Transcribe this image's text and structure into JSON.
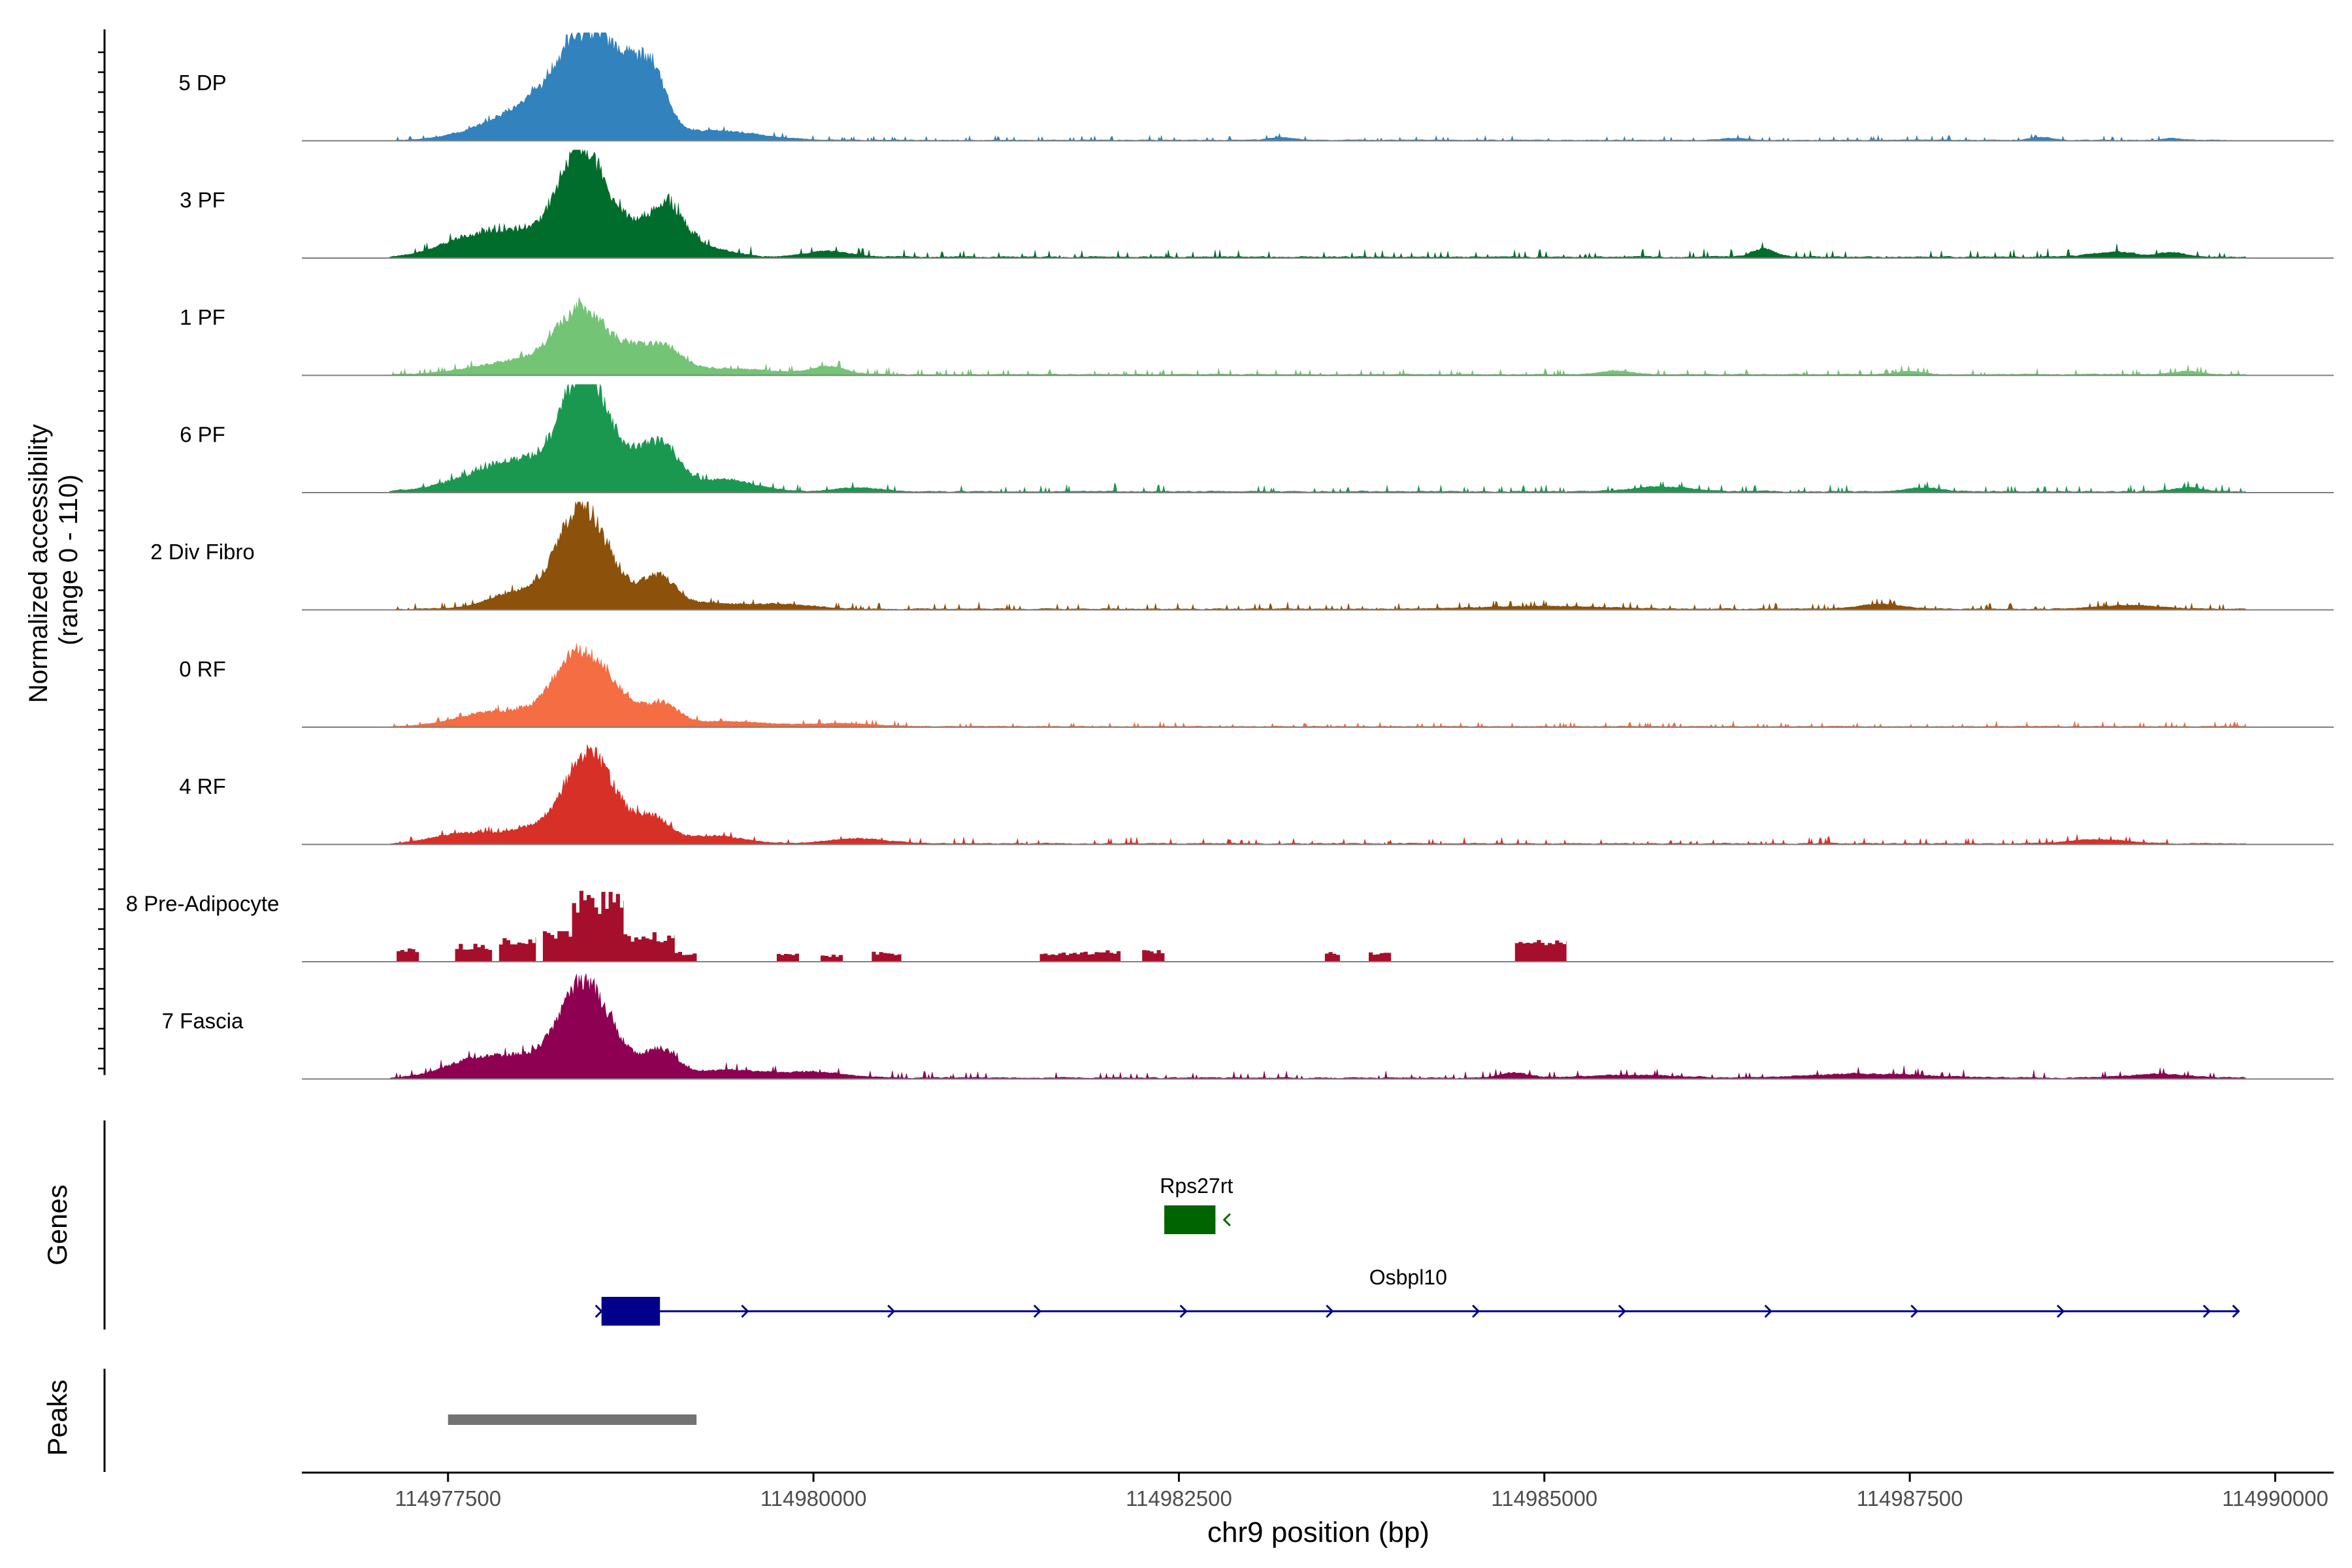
{
  "chart_data": {
    "type": "area",
    "title": "",
    "ylabel_line1": "Normalized accessibility",
    "ylabel_line2": "(range 0 - 110)",
    "ylim": [
      0,
      110
    ],
    "xlabel": "chr9 position (bp)",
    "xlim": [
      114976500,
      114990400
    ],
    "x_ticks": [
      114977500,
      114980000,
      114982500,
      114985000,
      114987500,
      114990000
    ],
    "x_tick_labels": [
      "114977500",
      "114980000",
      "114982500",
      "114985000",
      "114987500",
      "114990000"
    ],
    "gene_panel_label": "Genes",
    "peak_panel_label": "Peaks",
    "series": [
      {
        "name": "5 DP",
        "color": "#3182BD",
        "peaks": [
          [
            114978400,
            95,
            170
          ],
          [
            114978700,
            60,
            150
          ],
          [
            114978900,
            50,
            100
          ],
          [
            114978050,
            30,
            200
          ],
          [
            114977700,
            8,
            200
          ],
          [
            114979300,
            10,
            300
          ],
          [
            114983200,
            3,
            80
          ],
          [
            114986300,
            2,
            80
          ],
          [
            114988400,
            3,
            70
          ],
          [
            114989300,
            2,
            60
          ]
        ],
        "noise": 1.5,
        "start": 114977100,
        "end": 114989700,
        "seed": 11
      },
      {
        "name": "3 PF",
        "color": "#006D2C",
        "peaks": [
          [
            114978420,
            105,
            150
          ],
          [
            114978750,
            25,
            120
          ],
          [
            114979000,
            50,
            120
          ],
          [
            114978000,
            25,
            300
          ],
          [
            114977600,
            10,
            200
          ],
          [
            114979300,
            8,
            150
          ],
          [
            114980100,
            6,
            150
          ],
          [
            114986500,
            8,
            80
          ],
          [
            114988900,
            5,
            150
          ],
          [
            114989300,
            4,
            100
          ]
        ],
        "noise": 2.5,
        "start": 114977100,
        "end": 114989800,
        "seed": 23
      },
      {
        "name": "1 PF",
        "color": "#74C476",
        "peaks": [
          [
            114978420,
            62,
            170
          ],
          [
            114978800,
            20,
            150
          ],
          [
            114979000,
            18,
            120
          ],
          [
            114978000,
            14,
            300
          ],
          [
            114979400,
            6,
            300
          ],
          [
            114980100,
            8,
            120
          ],
          [
            114985500,
            4,
            100
          ],
          [
            114987500,
            3,
            100
          ],
          [
            114989400,
            3,
            100
          ]
        ],
        "noise": 2,
        "start": 114977100,
        "end": 114989800,
        "seed": 37
      },
      {
        "name": "6 PF",
        "color": "#1A9850",
        "peaks": [
          [
            114978420,
            100,
            140
          ],
          [
            114978950,
            45,
            130
          ],
          [
            114978650,
            30,
            150
          ],
          [
            114978050,
            30,
            300
          ],
          [
            114979400,
            12,
            200
          ],
          [
            114977700,
            6,
            300
          ],
          [
            114980300,
            4,
            150
          ],
          [
            114985800,
            5,
            200
          ],
          [
            114987600,
            4,
            120
          ],
          [
            114989400,
            4,
            100
          ]
        ],
        "noise": 2.3,
        "start": 114977100,
        "end": 114989800,
        "seed": 51
      },
      {
        "name": "2 Div Fibro",
        "color": "#8C510A",
        "peaks": [
          [
            114978400,
            98,
            150
          ],
          [
            114978950,
            30,
            110
          ],
          [
            114978650,
            22,
            150
          ],
          [
            114978000,
            18,
            200
          ],
          [
            114979300,
            6,
            200
          ],
          [
            114979800,
            5,
            200
          ],
          [
            114985000,
            3,
            400
          ],
          [
            114987300,
            5,
            150
          ],
          [
            114989000,
            4,
            200
          ]
        ],
        "noise": 2,
        "start": 114977100,
        "end": 114989800,
        "seed": 67
      },
      {
        "name": "0 RF",
        "color": "#F46D43",
        "peaks": [
          [
            114978400,
            70,
            170
          ],
          [
            114978950,
            22,
            120
          ],
          [
            114978650,
            18,
            120
          ],
          [
            114978000,
            12,
            300
          ],
          [
            114977700,
            6,
            200
          ],
          [
            114979400,
            5,
            300
          ],
          [
            114980200,
            3,
            200
          ]
        ],
        "noise": 1.6,
        "start": 114977100,
        "end": 114989800,
        "seed": 79
      },
      {
        "name": "4 RF",
        "color": "#D73027",
        "peaks": [
          [
            114978450,
            85,
            150
          ],
          [
            114978900,
            25,
            110
          ],
          [
            114978650,
            18,
            120
          ],
          [
            114978100,
            15,
            200
          ],
          [
            114977600,
            10,
            200
          ],
          [
            114979300,
            8,
            200
          ],
          [
            114980300,
            5,
            200
          ],
          [
            114988800,
            4,
            200
          ]
        ],
        "noise": 2,
        "start": 114977100,
        "end": 114989800,
        "seed": 97
      },
      {
        "name": "8 Pre-Adipocyte",
        "color": "#A50F2B",
        "blocks": [
          [
            114977150,
            114977300,
            14
          ],
          [
            114977550,
            114977800,
            18
          ],
          [
            114977850,
            114978100,
            25
          ],
          [
            114978150,
            114978350,
            32
          ],
          [
            114978350,
            114978700,
            72
          ],
          [
            114978700,
            114979050,
            30
          ],
          [
            114979050,
            114979200,
            10
          ],
          [
            114979750,
            114979900,
            8
          ],
          [
            114980050,
            114980200,
            7
          ],
          [
            114980400,
            114980600,
            10
          ],
          [
            114981550,
            114981950,
            10
          ],
          [
            114981950,
            114982100,
            12
          ],
          [
            114982250,
            114982400,
            12
          ],
          [
            114983500,
            114983600,
            10
          ],
          [
            114983800,
            114983950,
            10
          ],
          [
            114984800,
            114985150,
            22
          ]
        ],
        "seed": 113
      },
      {
        "name": "7 Fascia",
        "color": "#8E0152",
        "peaks": [
          [
            114978420,
            90,
            150
          ],
          [
            114978950,
            28,
            110
          ],
          [
            114978650,
            20,
            120
          ],
          [
            114978050,
            20,
            250
          ],
          [
            114977650,
            14,
            200
          ],
          [
            114979400,
            8,
            250
          ],
          [
            114980000,
            6,
            200
          ],
          [
            114984800,
            5,
            100
          ],
          [
            114985600,
            3,
            300
          ],
          [
            114987200,
            4,
            400
          ],
          [
            114989200,
            4,
            200
          ]
        ],
        "noise": 2.4,
        "start": 114977100,
        "end": 114989800,
        "seed": 131
      }
    ],
    "genes": [
      {
        "name": "Rps27rt",
        "color": "#006400",
        "start": 114982400,
        "end": 114982750,
        "exon": [
          114982400,
          114982750
        ],
        "strand": "-",
        "row": 1
      },
      {
        "name": "Osbpl10",
        "color": "#00008B",
        "start": 114978550,
        "end": 114989750,
        "exon": [
          114978550,
          114978950
        ],
        "strand": "+",
        "row": 2
      }
    ],
    "peaks_track": [
      {
        "start": 114977500,
        "end": 114979200,
        "color": "#737373"
      }
    ]
  }
}
